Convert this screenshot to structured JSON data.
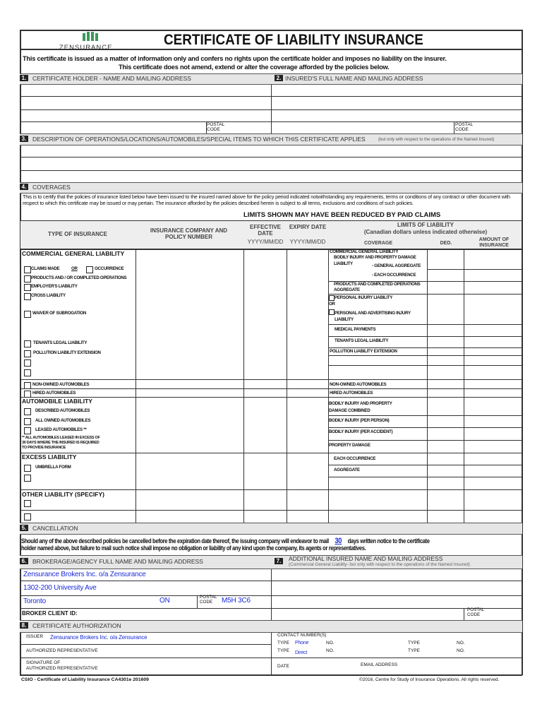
{
  "header": {
    "brand": "ZENSURANCE",
    "brand_color": "#3a9a5a",
    "title": "CERTIFICATE OF LIABILITY INSURANCE",
    "disclaimer_1": "This certificate is issued as a matter of information only and confers no rights upon the certificate holder and imposes no liability on the insurer.",
    "disclaimer_2": "This certificate does not amend, extend or alter the coverage afforded by the policies below."
  },
  "sections": {
    "s1": {
      "num": "1.",
      "label": "CERTIFICATE HOLDER -  NAME AND MAILING ADDRESS",
      "postal_code": "POSTAL CODE"
    },
    "s2": {
      "num": "2.",
      "label": "INSURED'S FULL NAME AND MAILING ADDRESS",
      "postal_code": "POSTAL CODE"
    },
    "s3": {
      "num": "3.",
      "label": "DESCRIPTION OF OPERATIONS/LOCATIONS/AUTOMOBILES/SPECIAL ITEMS TO WHICH THIS CERTIFICATE APPLIES",
      "note": "(but only with respect to the operations of the Named Insured)"
    },
    "s4": {
      "num": "4.",
      "label": "COVERAGES",
      "text": "This is to certify that the policies of insurance listed below have been issued to the insured named above for the policy period indicated notwithstanding any requirements, terms or conditions of any contract or other document with respect to which this certificate may be issued or may pertain.  The insurance afforded by the policies described herein is subject to all terms, exclusions and conditions of such policies.",
      "limits_note": "LIMITS SHOWN MAY HAVE BEEN REDUCED BY PAID CLAIMS"
    },
    "s5": {
      "num": "5.",
      "label": "CANCELLATION",
      "text_a": "Should any of the above described policies be cancelled before the expiration date thereof, the issuing company will endeavor to mail",
      "days": "30",
      "text_b": "days written notice to the certificate",
      "text_c": "holder named above, but failure to mail such notice shall impose no obligation or liability of any kind upon the company, its agents or representatives."
    },
    "s6": {
      "num": "6.",
      "label": "BROKERAGE/AGENCY FULL NAME AND MAILING ADDRESS",
      "name": "Zensurance Brokers Inc. o/a Zensurance",
      "address": "1302-200 University Ave",
      "city": "Toronto",
      "province": "ON",
      "postal_label": "POSTAL CODE",
      "postal_code": "M5H 3C6",
      "client_id_label": "BROKER CLIENT ID:"
    },
    "s7": {
      "num": "7.",
      "label": "ADDITIONAL INSURED NAME AND MAILING ADDRESS",
      "note": "(Commercial General Liability- but only with respect to the operations of the Named Insured)",
      "postal_code": "POSTAL CODE"
    },
    "s8": {
      "num": "8.",
      "label": "CERTIFICATE AUTHORIZATION",
      "issuer_label": "ISSUER",
      "issuer": "Zensurance Brokers Inc. o/a Zensurance",
      "auth_rep": "AUTHORIZED REPRESENTATIVE",
      "signature": "SIGNATURE OF",
      "signature2": "AUTHORIZED REPRESENTATIVE",
      "contact": "CONTACT NUMBER(S)",
      "type": "TYPE",
      "no": "NO.",
      "type1": "Phone",
      "type2": "Direct",
      "date": "DATE",
      "email": "EMAIL ADDRESS"
    }
  },
  "table": {
    "headers": {
      "type": "TYPE OF INSURANCE",
      "company": "INSURANCE COMPANY AND POLICY NUMBER",
      "effective": "EFFECTIVE DATE",
      "expiry": "EXPIRY DATE",
      "date_fmt": "YYYY/MM/DD",
      "limits": "LIMITS OF LIABILITY",
      "limits_sub": "(Canadian dollars unless indicated otherwise)",
      "coverage": "COVERAGE",
      "ded": "DED.",
      "amount": "AMOUNT OF INSURANCE"
    },
    "left": {
      "cgl": "COMMERCIAL GENERAL LIABILITY",
      "claims_made": "CLAIMS MADE",
      "or": "OR",
      "occurrence": "OCCURRENCE",
      "products": "PRODUCTS AND / OR COMPLETED OPERATIONS",
      "employers": "EMPLOYER'S LIABILITY",
      "cross": "CROSS LIABILITY",
      "waiver": "WAIVER OF SUBROGATION",
      "tenants": "TENANTS LEGAL LIABILITY",
      "pollution": "POLLUTION LIABILITY EXTENSION",
      "non_owned": "NON-OWNED AUTOMOBILES",
      "hired": "HIRED AUTOMOBILES",
      "auto": "AUTOMOBILE LIABILITY",
      "described": "DESCRIBED AUTOMOBILES",
      "all_owned": "ALL OWNED AUTOMOBILES",
      "leased": "LEASED AUTOMOBILES **",
      "leased_note1": "** ALL AUTOMOBILES LEASED IN EXCESS OF",
      "leased_note2": "30 DAYS WHERE THE INSURED IS REQUIRED",
      "leased_note3": "TO PROVIDE INSURANCE",
      "excess": "EXCESS LIABILITY",
      "umbrella": "UMBRELLA FORM",
      "other": "OTHER LIABILITY  (SPECIFY)"
    },
    "right": {
      "cgl": "COMMERCIAL GENERAL LIABILITY",
      "bodily": "BODILY INJURY AND PROPERTY DAMAGE",
      "liability": "LIABILITY",
      "gen_agg": "- GENERAL AGGREGATE",
      "each_occ": "- EACH OCCURRENCE",
      "products1": "PRODUCTS AND COMPLETED OPERATIONS",
      "products2": "AGGREGATE",
      "personal": "PERSONAL INJURY LIABILITY",
      "or": "OR",
      "advertising1": "PERSONAL AND ADVERTISING INJURY",
      "advertising2": "LIABILITY",
      "medical": "MEDICAL PAYMENTS",
      "tenants": "TENANTS LEGAL LIABILITY",
      "pollution": "POLLUTION LIABILITY EXTENSION",
      "non_owned": "NON-OWNED AUTOMOBILES",
      "hired": "HIRED AUTOMOBILES",
      "bipd1": "BODILY INJURY AND PROPERTY",
      "bipd2": "DAMAGE COMBINED",
      "bi_person": "BODILY INJURY   (PER PERSON)",
      "bi_accident": "BODILY INJURY   (PER ACCIDENT)",
      "pd": "PROPERTY DAMAGE",
      "each_occ2": "EACH OCCURRENCE",
      "aggregate": "AGGREGATE"
    }
  },
  "footer": {
    "left": "CSIO - Certificate of Liability Insurance CA4301e 201609",
    "right": "©2016, Centre for Study of Insurance Operations. All rights reserved."
  }
}
